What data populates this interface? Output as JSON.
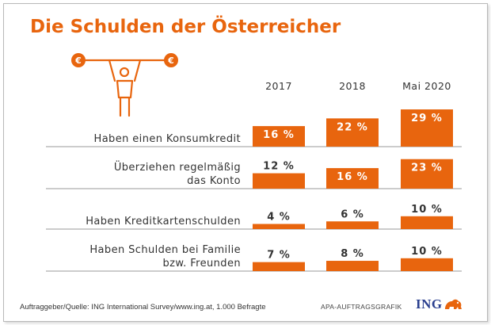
{
  "title": "Die Schulden der Österreicher",
  "source": "Auftraggeber/Quelle: ING International Survey/www.ing.at, 1.000 Befragte",
  "agency": "APA-AUFTRAGSGRAFIK",
  "brand": "ING",
  "icons": [
    "weightlifter-euro-icon",
    "ing-lion-icon"
  ],
  "colors": {
    "accent": "#e8650e",
    "text": "#333333",
    "divider": "#9a9a9a",
    "brand": "#2a3f8f"
  },
  "chart_data": {
    "type": "bar",
    "title": "Die Schulden der Österreicher",
    "xlabel": "",
    "ylabel": "",
    "unit": "%",
    "grid": false,
    "categories": [
      [
        "Haben einen Konsumkredit"
      ],
      [
        "Überziehen regelmäßig",
        "das Konto"
      ],
      [
        "Haben Kreditkartenschulden"
      ],
      [
        "Haben Schulden bei Familie",
        "bzw. Freunden"
      ]
    ],
    "series": [
      {
        "name": "2017",
        "values": [
          16,
          12,
          4,
          7
        ],
        "labels": [
          "16 %",
          "12 %",
          "4 %",
          "7 %"
        ]
      },
      {
        "name": "2018",
        "values": [
          22,
          16,
          6,
          8
        ],
        "labels": [
          "22 %",
          "16 %",
          "6 %",
          "8 %"
        ]
      },
      {
        "name": "Mai 2020",
        "values": [
          29,
          23,
          10,
          10
        ],
        "labels": [
          "29 %",
          "23 %",
          "10 %",
          "10 %"
        ]
      }
    ]
  }
}
